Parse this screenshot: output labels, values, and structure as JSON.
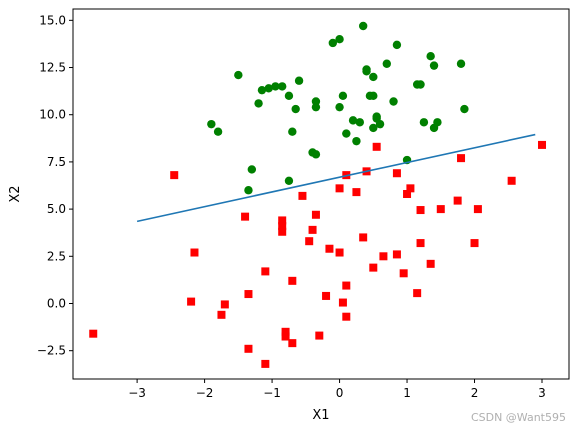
{
  "chart_data": {
    "type": "scatter",
    "xlabel": "X1",
    "ylabel": "X2",
    "xlim": [
      -3.95,
      3.4
    ],
    "ylim": [
      -4.0,
      15.6
    ],
    "xticks": [
      -3,
      -2,
      -1,
      0,
      1,
      2,
      3
    ],
    "xtick_labels": [
      "−3",
      "−2",
      "−1",
      "0",
      "1",
      "2",
      "3"
    ],
    "yticks": [
      -2.5,
      0.0,
      2.5,
      5.0,
      7.5,
      10.0,
      12.5,
      15.0
    ],
    "ytick_labels": [
      "−2.5",
      "0.0",
      "2.5",
      "5.0",
      "7.5",
      "10.0",
      "12.5",
      "15.0"
    ],
    "grid": false,
    "series": [
      {
        "marker": "circle",
        "color": "#008000",
        "points": [
          [
            -1.9,
            9.5
          ],
          [
            -1.8,
            9.1
          ],
          [
            -1.5,
            12.1
          ],
          [
            -1.3,
            7.1
          ],
          [
            -1.2,
            10.6
          ],
          [
            -1.15,
            11.3
          ],
          [
            -1.05,
            11.4
          ],
          [
            -0.95,
            11.5
          ],
          [
            -0.85,
            11.5
          ],
          [
            -0.75,
            11.0
          ],
          [
            -0.7,
            9.1
          ],
          [
            -0.65,
            10.3
          ],
          [
            -0.6,
            11.8
          ],
          [
            -0.75,
            6.5
          ],
          [
            -0.4,
            8.0
          ],
          [
            -0.35,
            10.4
          ],
          [
            -0.35,
            10.7
          ],
          [
            -0.1,
            13.8
          ],
          [
            0.0,
            14.0
          ],
          [
            0.0,
            10.4
          ],
          [
            0.05,
            11.0
          ],
          [
            0.1,
            9.0
          ],
          [
            0.2,
            9.7
          ],
          [
            0.25,
            8.6
          ],
          [
            0.3,
            9.6
          ],
          [
            0.35,
            14.7
          ],
          [
            0.4,
            12.3
          ],
          [
            0.45,
            11.0
          ],
          [
            0.5,
            12.0
          ],
          [
            0.5,
            11.0
          ],
          [
            0.5,
            9.3
          ],
          [
            0.55,
            9.8
          ],
          [
            0.6,
            9.5
          ],
          [
            0.7,
            12.7
          ],
          [
            0.8,
            10.7
          ],
          [
            0.85,
            13.7
          ],
          [
            1.0,
            7.6
          ],
          [
            1.15,
            11.6
          ],
          [
            1.2,
            11.6
          ],
          [
            1.25,
            9.6
          ],
          [
            1.35,
            13.1
          ],
          [
            1.4,
            9.3
          ],
          [
            1.4,
            12.6
          ],
          [
            1.45,
            9.6
          ],
          [
            1.8,
            12.7
          ],
          [
            1.85,
            10.3
          ],
          [
            -1.35,
            6.0
          ],
          [
            -0.35,
            7.9
          ],
          [
            0.4,
            12.4
          ],
          [
            0.55,
            9.9
          ]
        ]
      },
      {
        "marker": "square",
        "color": "#ff0000",
        "points": [
          [
            -3.65,
            -1.6
          ],
          [
            -2.45,
            6.8
          ],
          [
            -2.15,
            2.7
          ],
          [
            -2.2,
            0.1
          ],
          [
            -1.75,
            -0.6
          ],
          [
            -1.7,
            -0.05
          ],
          [
            -1.4,
            4.6
          ],
          [
            -1.35,
            -2.4
          ],
          [
            -1.35,
            0.5
          ],
          [
            -1.1,
            1.7
          ],
          [
            -1.1,
            -3.2
          ],
          [
            -0.85,
            4.4
          ],
          [
            -0.85,
            4.1
          ],
          [
            -0.85,
            3.8
          ],
          [
            -0.8,
            -1.5
          ],
          [
            -0.8,
            -1.75
          ],
          [
            -0.7,
            -2.1
          ],
          [
            -0.7,
            1.2
          ],
          [
            -0.55,
            5.7
          ],
          [
            -0.45,
            3.3
          ],
          [
            -0.35,
            4.7
          ],
          [
            -0.4,
            3.9
          ],
          [
            -0.3,
            -1.7
          ],
          [
            -0.2,
            0.4
          ],
          [
            -0.15,
            2.9
          ],
          [
            0.0,
            2.7
          ],
          [
            0.0,
            6.1
          ],
          [
            0.05,
            0.05
          ],
          [
            0.1,
            -0.7
          ],
          [
            0.1,
            0.95
          ],
          [
            0.1,
            6.8
          ],
          [
            0.25,
            5.9
          ],
          [
            0.35,
            3.5
          ],
          [
            0.4,
            7.0
          ],
          [
            0.5,
            1.9
          ],
          [
            0.55,
            8.3
          ],
          [
            0.65,
            2.5
          ],
          [
            0.85,
            6.9
          ],
          [
            0.85,
            2.6
          ],
          [
            0.95,
            1.6
          ],
          [
            1.0,
            5.8
          ],
          [
            1.05,
            6.1
          ],
          [
            1.15,
            0.55
          ],
          [
            1.2,
            3.2
          ],
          [
            1.2,
            4.95
          ],
          [
            1.35,
            2.1
          ],
          [
            1.5,
            5.0
          ],
          [
            1.75,
            5.45
          ],
          [
            1.8,
            7.7
          ],
          [
            2.0,
            3.2
          ],
          [
            2.05,
            5.0
          ],
          [
            2.55,
            6.5
          ],
          [
            3.0,
            8.4
          ]
        ]
      }
    ],
    "line": {
      "color": "#1f77b4",
      "points": [
        [
          -3.0,
          4.35
        ],
        [
          2.9,
          8.95
        ]
      ]
    }
  },
  "watermark": "CSDN @Want595"
}
